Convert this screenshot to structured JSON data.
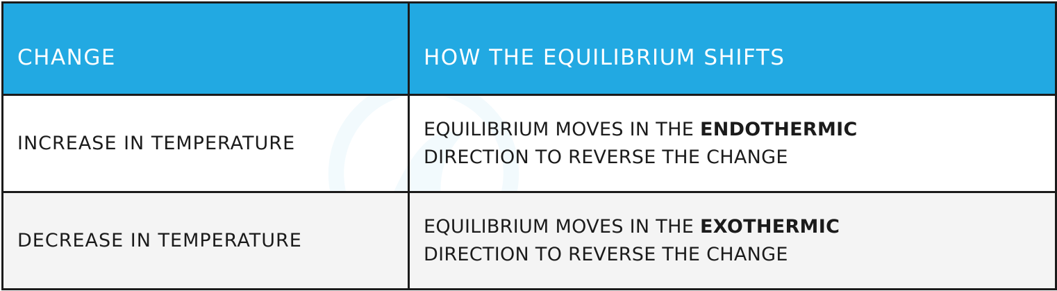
{
  "table": {
    "headers": {
      "change": "CHANGE",
      "shift": "HOW THE EQUILIBRIUM SHIFTS"
    },
    "rows": [
      {
        "change": "INCREASE IN TEMPERATURE",
        "shift_prefix": "EQUILIBRIUM MOVES IN THE",
        "shift_bold": "ENDOTHERMIC",
        "shift_suffix": "DIRECTION TO REVERSE THE CHANGE"
      },
      {
        "change": "DECREASE IN TEMPERATURE",
        "shift_prefix": "EQUILIBRIUM MOVES IN THE",
        "shift_bold": "EXOTHERMIC",
        "shift_suffix": "DIRECTION TO REVERSE THE CHANGE"
      }
    ]
  },
  "colors": {
    "header_background": "#22a9e2",
    "header_text": "#ffffff",
    "border": "#1b1b1b",
    "alt_row_background": "#f4f4f4"
  }
}
